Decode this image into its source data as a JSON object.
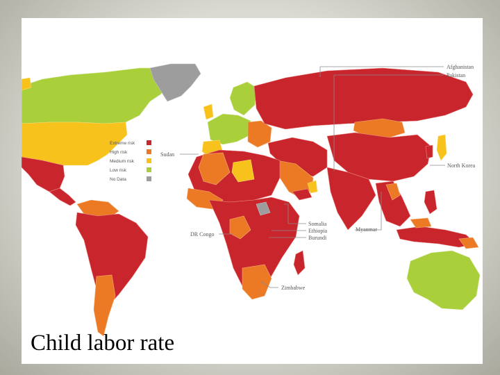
{
  "title": "Child labor rate",
  "legend": [
    {
      "label": "Extreme risk",
      "color": "#c9252c"
    },
    {
      "label": "High risk",
      "color": "#ec7a25"
    },
    {
      "label": "Medium risk",
      "color": "#f7c21b"
    },
    {
      "label": "Low risk",
      "color": "#a9cf3a"
    },
    {
      "label": "No Data",
      "color": "#9d9d9d"
    }
  ],
  "callouts": {
    "afghanistan": "Afghanistan",
    "pakistan": "Pakistan",
    "north_korea": "North Korea",
    "myanmar": "Myanmar",
    "sudan": "Sudan",
    "somalia": "Somalia",
    "ethiopia": "Ethiopia",
    "burundi": "Burundi",
    "dr_congo": "DR Congo",
    "zimbabwe": "Zimbabwe"
  }
}
